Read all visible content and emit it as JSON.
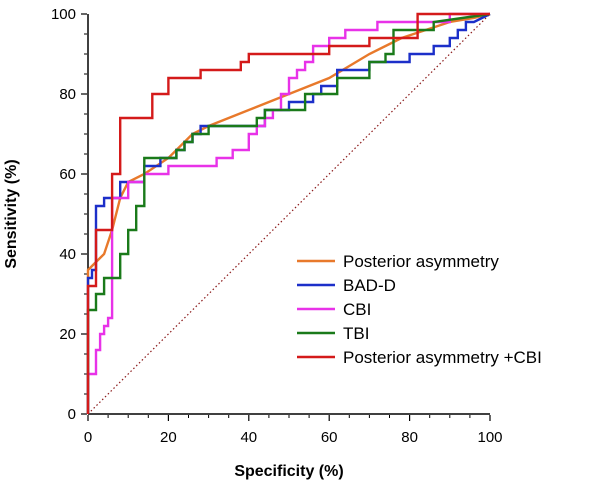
{
  "chart_data": {
    "type": "line",
    "xlabel": "Specificity (%)",
    "ylabel": "Sensitivity (%)",
    "xlim": [
      0,
      100
    ],
    "ylim": [
      0,
      100
    ],
    "x_ticks": [
      0,
      20,
      40,
      60,
      80,
      100
    ],
    "y_ticks": [
      0,
      20,
      40,
      60,
      80,
      100
    ],
    "grid": false,
    "legend_position": "bottom-right",
    "reference_line": {
      "x": [
        0,
        100
      ],
      "y": [
        0,
        100
      ],
      "style": "dotted",
      "color": "#8b1a1a"
    },
    "series": [
      {
        "name": "Posterior asymmetry",
        "color": "#e8792b",
        "x": [
          0,
          0,
          1,
          2,
          4,
          6,
          8,
          10,
          14,
          20,
          26,
          30,
          40,
          50,
          60,
          70,
          78,
          84,
          90,
          96,
          100
        ],
        "y": [
          0,
          36,
          37,
          38,
          40,
          46,
          54,
          58,
          60,
          64,
          70,
          72,
          76,
          80,
          84,
          90,
          94,
          96,
          98,
          99,
          100
        ]
      },
      {
        "name": "BAD-D",
        "color": "#1c2fc9",
        "x": [
          0,
          0,
          1,
          1,
          2,
          2,
          4,
          4,
          8,
          8,
          10,
          10,
          14,
          14,
          18,
          18,
          20,
          22,
          22,
          24,
          24,
          26,
          26,
          28,
          28,
          44,
          44,
          50,
          50,
          54,
          56,
          56,
          58,
          58,
          62,
          62,
          70,
          70,
          76,
          76,
          80,
          80,
          86,
          86,
          90,
          90,
          92,
          92,
          94,
          94,
          96,
          96,
          100
        ],
        "y": [
          0,
          34,
          34,
          36,
          36,
          52,
          52,
          54,
          54,
          58,
          58,
          58,
          58,
          62,
          62,
          64,
          64,
          64,
          66,
          66,
          68,
          68,
          70,
          70,
          72,
          72,
          76,
          76,
          78,
          78,
          78,
          80,
          80,
          82,
          82,
          86,
          86,
          88,
          88,
          88,
          88,
          90,
          90,
          92,
          92,
          94,
          94,
          96,
          96,
          98,
          98,
          98,
          100
        ]
      },
      {
        "name": "CBI",
        "color": "#e832e8",
        "x": [
          0,
          0,
          2,
          2,
          3,
          3,
          4,
          4,
          5,
          5,
          6,
          6,
          7,
          7,
          10,
          10,
          14,
          14,
          20,
          20,
          32,
          32,
          34,
          34,
          36,
          36,
          40,
          40,
          42,
          42,
          44,
          44,
          46,
          46,
          48,
          48,
          50,
          50,
          52,
          52,
          54,
          54,
          56,
          56,
          60,
          60,
          64,
          64,
          72,
          72,
          82,
          82,
          90,
          90,
          100
        ],
        "y": [
          0,
          10,
          10,
          16,
          16,
          20,
          20,
          22,
          22,
          24,
          24,
          54,
          54,
          54,
          54,
          58,
          58,
          60,
          60,
          62,
          62,
          64,
          64,
          64,
          64,
          66,
          66,
          70,
          70,
          72,
          72,
          74,
          74,
          76,
          76,
          80,
          80,
          84,
          84,
          86,
          86,
          88,
          88,
          92,
          92,
          94,
          94,
          96,
          96,
          98,
          98,
          98,
          98,
          100,
          100
        ]
      },
      {
        "name": "TBI",
        "color": "#1a7a1a",
        "x": [
          0,
          0,
          2,
          2,
          4,
          4,
          8,
          8,
          10,
          10,
          12,
          12,
          14,
          14,
          20,
          22,
          22,
          24,
          24,
          26,
          26,
          30,
          30,
          42,
          42,
          44,
          44,
          54,
          54,
          62,
          62,
          70,
          70,
          74,
          74,
          76,
          76,
          86,
          86,
          100
        ],
        "y": [
          0,
          26,
          26,
          30,
          30,
          34,
          34,
          40,
          40,
          46,
          46,
          52,
          52,
          64,
          64,
          64,
          66,
          66,
          68,
          68,
          70,
          70,
          72,
          72,
          74,
          74,
          76,
          76,
          80,
          80,
          84,
          84,
          88,
          88,
          90,
          90,
          96,
          96,
          98,
          100
        ]
      },
      {
        "name": "Posterior asymmetry +CBI",
        "color": "#d41a1a",
        "x": [
          0,
          0,
          2,
          2,
          6,
          6,
          8,
          8,
          10,
          10,
          16,
          16,
          20,
          20,
          26,
          26,
          28,
          28,
          30,
          30,
          38,
          38,
          40,
          40,
          60,
          60,
          70,
          70,
          82,
          82,
          100
        ],
        "y": [
          0,
          32,
          32,
          46,
          46,
          60,
          60,
          74,
          74,
          74,
          74,
          80,
          80,
          84,
          84,
          84,
          84,
          86,
          86,
          86,
          86,
          88,
          88,
          90,
          90,
          92,
          92,
          94,
          94,
          100,
          100
        ]
      }
    ]
  }
}
